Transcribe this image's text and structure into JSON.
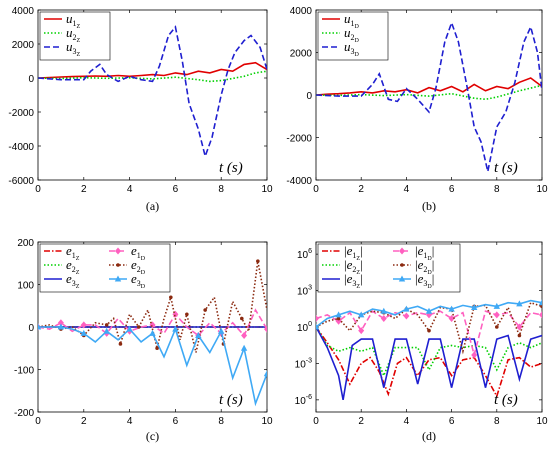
{
  "chart_data": [
    {
      "id": "a",
      "type": "line",
      "caption": "(a)",
      "xlabel": "t (s)",
      "xlim": [
        0,
        10
      ],
      "ylim": [
        -6000,
        4000
      ],
      "xticks": [
        0,
        2,
        4,
        6,
        8,
        10
      ],
      "yticks": [
        -6000,
        -4000,
        -2000,
        0,
        2000,
        4000
      ],
      "legend_position": "top-left",
      "series": [
        {
          "name": "u1Z",
          "label_main": "u",
          "label_sub1": "1",
          "label_sub2": "Z",
          "color": "#e00000",
          "style": "solid",
          "x": [
            0,
            0.5,
            1,
            1.5,
            2,
            2.5,
            3,
            3.5,
            4,
            4.5,
            5,
            5.5,
            6,
            6.5,
            7,
            7.5,
            8,
            8.5,
            9,
            9.5,
            10
          ],
          "y": [
            0,
            30,
            60,
            80,
            100,
            120,
            100,
            150,
            100,
            150,
            200,
            150,
            300,
            200,
            400,
            300,
            500,
            400,
            800,
            900,
            500
          ]
        },
        {
          "name": "u2Z",
          "label_main": "u",
          "label_sub1": "2",
          "label_sub2": "Z",
          "color": "#00d000",
          "style": "dotted",
          "x": [
            0,
            1,
            2,
            3,
            4,
            5,
            6,
            7,
            7.5,
            8,
            9,
            9.5,
            10
          ],
          "y": [
            0,
            -30,
            20,
            -20,
            10,
            -50,
            50,
            -100,
            -200,
            -150,
            100,
            300,
            400
          ]
        },
        {
          "name": "u3Z",
          "label_main": "u",
          "label_sub1": "3",
          "label_sub2": "Z",
          "color": "#1f1fd0",
          "style": "dashed",
          "x": [
            0,
            1,
            2,
            2.3,
            2.7,
            3,
            3.5,
            4,
            4.5,
            5,
            5.3,
            5.7,
            6,
            6.3,
            6.6,
            7,
            7.3,
            7.6,
            8,
            8.3,
            8.6,
            9,
            9.3,
            9.7,
            10
          ],
          "y": [
            0,
            -100,
            -100,
            400,
            800,
            200,
            -200,
            100,
            -100,
            -200,
            700,
            2500,
            3000,
            1000,
            -1500,
            -3000,
            -4600,
            -3500,
            -1000,
            500,
            1500,
            2200,
            2500,
            1800,
            500
          ]
        }
      ]
    },
    {
      "id": "b",
      "type": "line",
      "caption": "(b)",
      "xlabel": "t (s)",
      "xlim": [
        0,
        10
      ],
      "ylim": [
        -4000,
        4000
      ],
      "xticks": [
        0,
        2,
        4,
        6,
        8,
        10
      ],
      "yticks": [
        -4000,
        -2000,
        0,
        2000,
        4000
      ],
      "legend_position": "top-left",
      "series": [
        {
          "name": "u1D",
          "label_main": "u",
          "label_sub1": "1",
          "label_sub2": "D",
          "color": "#e00000",
          "style": "solid",
          "x": [
            0,
            0.5,
            1,
            1.5,
            2,
            2.5,
            3,
            3.5,
            4,
            4.5,
            5,
            5.5,
            6,
            6.5,
            7,
            7.5,
            8,
            8.5,
            9,
            9.5,
            10
          ],
          "y": [
            0,
            40,
            60,
            100,
            150,
            100,
            200,
            150,
            250,
            100,
            350,
            200,
            400,
            150,
            500,
            200,
            400,
            300,
            600,
            800,
            400
          ]
        },
        {
          "name": "u2D",
          "label_main": "u",
          "label_sub1": "2",
          "label_sub2": "D",
          "color": "#00d000",
          "style": "dotted",
          "x": [
            0,
            1,
            2,
            3,
            4,
            5,
            6,
            7,
            7.5,
            8,
            9,
            10
          ],
          "y": [
            0,
            -20,
            20,
            -30,
            20,
            -50,
            60,
            -150,
            -200,
            -100,
            200,
            450
          ]
        },
        {
          "name": "u3D",
          "label_main": "u",
          "label_sub1": "3",
          "label_sub2": "D",
          "color": "#1f1fd0",
          "style": "dashed",
          "x": [
            0,
            1,
            2,
            2.5,
            2.8,
            3.2,
            3.6,
            4,
            4.5,
            5,
            5.3,
            5.7,
            6,
            6.3,
            6.7,
            7,
            7.3,
            7.6,
            8,
            8.4,
            8.8,
            9.2,
            9.5,
            9.8,
            10
          ],
          "y": [
            0,
            -50,
            -50,
            500,
            1000,
            -200,
            -300,
            300,
            -200,
            -800,
            300,
            2500,
            3400,
            2500,
            300,
            -1500,
            -2200,
            -3600,
            -1500,
            -800,
            600,
            2500,
            3200,
            2000,
            200
          ]
        }
      ]
    },
    {
      "id": "c",
      "type": "line",
      "caption": "(c)",
      "xlabel": "t (s)",
      "xlim": [
        0,
        10
      ],
      "ylim": [
        -200,
        200
      ],
      "xticks": [
        0,
        2,
        4,
        6,
        8,
        10
      ],
      "yticks": [
        -200,
        -100,
        0,
        100,
        200
      ],
      "legend_position": "top-left",
      "series": [
        {
          "name": "e1Z",
          "label_main": "e",
          "label_sub1": "1",
          "label_sub2": "Z",
          "color": "#e00000",
          "style": "dashdot",
          "x": [
            0,
            10
          ],
          "y": [
            0,
            0
          ]
        },
        {
          "name": "e2Z",
          "label_main": "e",
          "label_sub1": "2",
          "label_sub2": "Z",
          "color": "#00d000",
          "style": "dotted",
          "x": [
            0,
            10
          ],
          "y": [
            0,
            0
          ]
        },
        {
          "name": "e3Z",
          "label_main": "e",
          "label_sub1": "3",
          "label_sub2": "Z",
          "color": "#1f1fd0",
          "style": "solid",
          "x": [
            0,
            10
          ],
          "y": [
            0,
            0
          ]
        },
        {
          "name": "e1D",
          "label_main": "e",
          "label_sub1": "1",
          "label_sub2": "D",
          "color": "#ff60c0",
          "style": "dashed",
          "marker": "diamond",
          "x": [
            0,
            0.5,
            1,
            1.5,
            2,
            2.5,
            3,
            3.5,
            4,
            4.5,
            5,
            5.5,
            6,
            6.5,
            7,
            7.5,
            8,
            8.5,
            9,
            9.5,
            10
          ],
          "y": [
            0,
            -5,
            10,
            -10,
            5,
            5,
            -15,
            20,
            -10,
            0,
            5,
            -15,
            30,
            0,
            -20,
            10,
            -15,
            10,
            -20,
            40,
            -5
          ]
        },
        {
          "name": "e2D",
          "label_main": "e",
          "label_sub1": "2",
          "label_sub2": "D",
          "color": "#8b2a10",
          "style": "dotted",
          "marker": "dot",
          "x": [
            0,
            0.5,
            1,
            1.5,
            2,
            2.5,
            3,
            3.3,
            3.6,
            4,
            4.4,
            4.8,
            5.2,
            5.5,
            5.8,
            6.2,
            6.5,
            6.9,
            7.3,
            7.7,
            8.1,
            8.5,
            8.9,
            9.2,
            9.6,
            10
          ],
          "y": [
            0,
            5,
            -5,
            0,
            -20,
            10,
            5,
            20,
            -40,
            30,
            0,
            40,
            -50,
            20,
            70,
            -30,
            30,
            -60,
            40,
            70,
            -40,
            60,
            20,
            -10,
            155,
            40
          ]
        },
        {
          "name": "e3D",
          "label_main": "e",
          "label_sub1": "3",
          "label_sub2": "D",
          "color": "#3fa9f5",
          "style": "solid",
          "marker": "triangle",
          "x": [
            0,
            0.5,
            1,
            1.5,
            2,
            2.5,
            3,
            3.5,
            4,
            4.5,
            5,
            5.5,
            6,
            6.5,
            7,
            7.5,
            8,
            8.5,
            9,
            9.5,
            10
          ],
          "y": [
            0,
            0,
            0,
            -5,
            -15,
            -35,
            -10,
            -30,
            -5,
            -35,
            -15,
            -70,
            -5,
            -90,
            -20,
            -60,
            -10,
            -120,
            -50,
            -180,
            -110
          ]
        }
      ]
    },
    {
      "id": "d",
      "type": "line",
      "caption": "(d)",
      "xlabel": "t (s)",
      "xlim": [
        0,
        10
      ],
      "ylim": [
        1e-07,
        10000000.0
      ],
      "yscale": "log",
      "xticks": [
        0,
        2,
        4,
        6,
        8,
        10
      ],
      "yticks_exp": [
        -6,
        -3,
        0,
        3,
        6
      ],
      "legend_position": "top-left",
      "series": [
        {
          "name": "|e1Z|",
          "label_main": "e",
          "label_sub1": "1",
          "label_sub2": "Z",
          "color": "#e00000",
          "style": "dashdot",
          "x": [
            0,
            0.5,
            1,
            1.5,
            2,
            2.4,
            2.8,
            3.2,
            3.6,
            4,
            4.5,
            5,
            5.5,
            6,
            6.5,
            7,
            7.5,
            8,
            8.5,
            9,
            9.5,
            10
          ],
          "y": [
            1,
            0.05,
            0.002,
            2e-05,
            0.001,
            0.003,
            0.0002,
            3e-06,
            0.001,
            0.003,
            0.0001,
            0.002,
            0.003,
            0.0001,
            0.002,
            0.003,
            0.0001,
            2e-06,
            0.002,
            0.003,
            0.0005,
            0.001
          ]
        },
        {
          "name": "|e2Z|",
          "label_main": "e",
          "label_sub1": "2",
          "label_sub2": "Z",
          "color": "#00d000",
          "style": "dotted",
          "x": [
            0,
            0.5,
            1,
            1.5,
            2,
            2.5,
            3,
            3.5,
            4,
            4.5,
            5,
            5.5,
            6,
            6.5,
            7,
            7.5,
            8,
            8.5,
            9,
            9.5,
            10
          ],
          "y": [
            1,
            0.03,
            0.01,
            0.02,
            0.01,
            0.02,
            0.0001,
            0.02,
            0.02,
            0.02,
            0.0003,
            0.02,
            0.03,
            0.02,
            0.03,
            0.02,
            0.0003,
            0.02,
            0.05,
            0.02,
            0.05
          ]
        },
        {
          "name": "|e3Z|",
          "label_main": "e",
          "label_sub1": "3",
          "label_sub2": "Z",
          "color": "#1f1fd0",
          "style": "solid",
          "x": [
            0,
            0.5,
            1,
            1.2,
            1.6,
            2,
            2.5,
            3,
            3.5,
            4,
            4.5,
            5,
            5.5,
            6,
            6.5,
            7,
            7.5,
            8,
            8.5,
            9,
            9.5,
            10
          ],
          "y": [
            1,
            0.02,
            0.0001,
            1e-06,
            0.03,
            0.1,
            0.1,
            1e-05,
            0.1,
            0.1,
            2e-05,
            0.1,
            0.1,
            1e-05,
            0.1,
            0.1,
            1e-05,
            0.1,
            0.2,
            5e-05,
            0.1,
            0.2
          ]
        },
        {
          "name": "|e1D|",
          "label_main": "e",
          "label_sub1": "1",
          "label_sub2": "D",
          "color": "#ff60c0",
          "style": "dashed",
          "marker": "diamond",
          "x": [
            0,
            0.5,
            1,
            1.5,
            2,
            2.5,
            3,
            3.5,
            4,
            4.5,
            5,
            5.5,
            6,
            6.5,
            7,
            7.5,
            8,
            8.5,
            9,
            9.5,
            10
          ],
          "y": [
            5,
            10,
            3,
            15,
            0.5,
            20,
            5,
            15,
            8,
            15,
            10,
            20,
            5,
            15,
            0.005,
            20,
            10,
            15,
            1,
            15,
            10
          ]
        },
        {
          "name": "|e2D|",
          "label_main": "e",
          "label_sub1": "2",
          "label_sub2": "D",
          "color": "#8b2a10",
          "style": "dotted",
          "marker": "dot",
          "x": [
            0,
            0.5,
            1,
            1.5,
            2,
            2.5,
            3,
            3.5,
            4,
            4.5,
            5,
            5.5,
            6,
            6.5,
            7,
            7.5,
            8,
            8.5,
            9,
            9.5,
            10
          ],
          "y": [
            1,
            3,
            5,
            0.5,
            10,
            20,
            15,
            5,
            30,
            10,
            0.5,
            40,
            30,
            0.01,
            50,
            60,
            1,
            40,
            0.2,
            100,
            50
          ]
        },
        {
          "name": "|e3D|",
          "label_main": "e",
          "label_sub1": "3",
          "label_sub2": "D",
          "color": "#3fa9f5",
          "style": "solid",
          "marker": "triangle",
          "x": [
            0,
            0.5,
            1,
            1.5,
            2,
            2.5,
            3,
            3.5,
            4,
            4.5,
            5,
            5.5,
            6,
            6.5,
            7,
            7.5,
            8,
            8.5,
            9,
            9.5,
            10
          ],
          "y": [
            1,
            5,
            10,
            20,
            10,
            30,
            20,
            10,
            30,
            50,
            20,
            50,
            30,
            60,
            40,
            70,
            50,
            100,
            80,
            150,
            100
          ]
        }
      ]
    }
  ]
}
